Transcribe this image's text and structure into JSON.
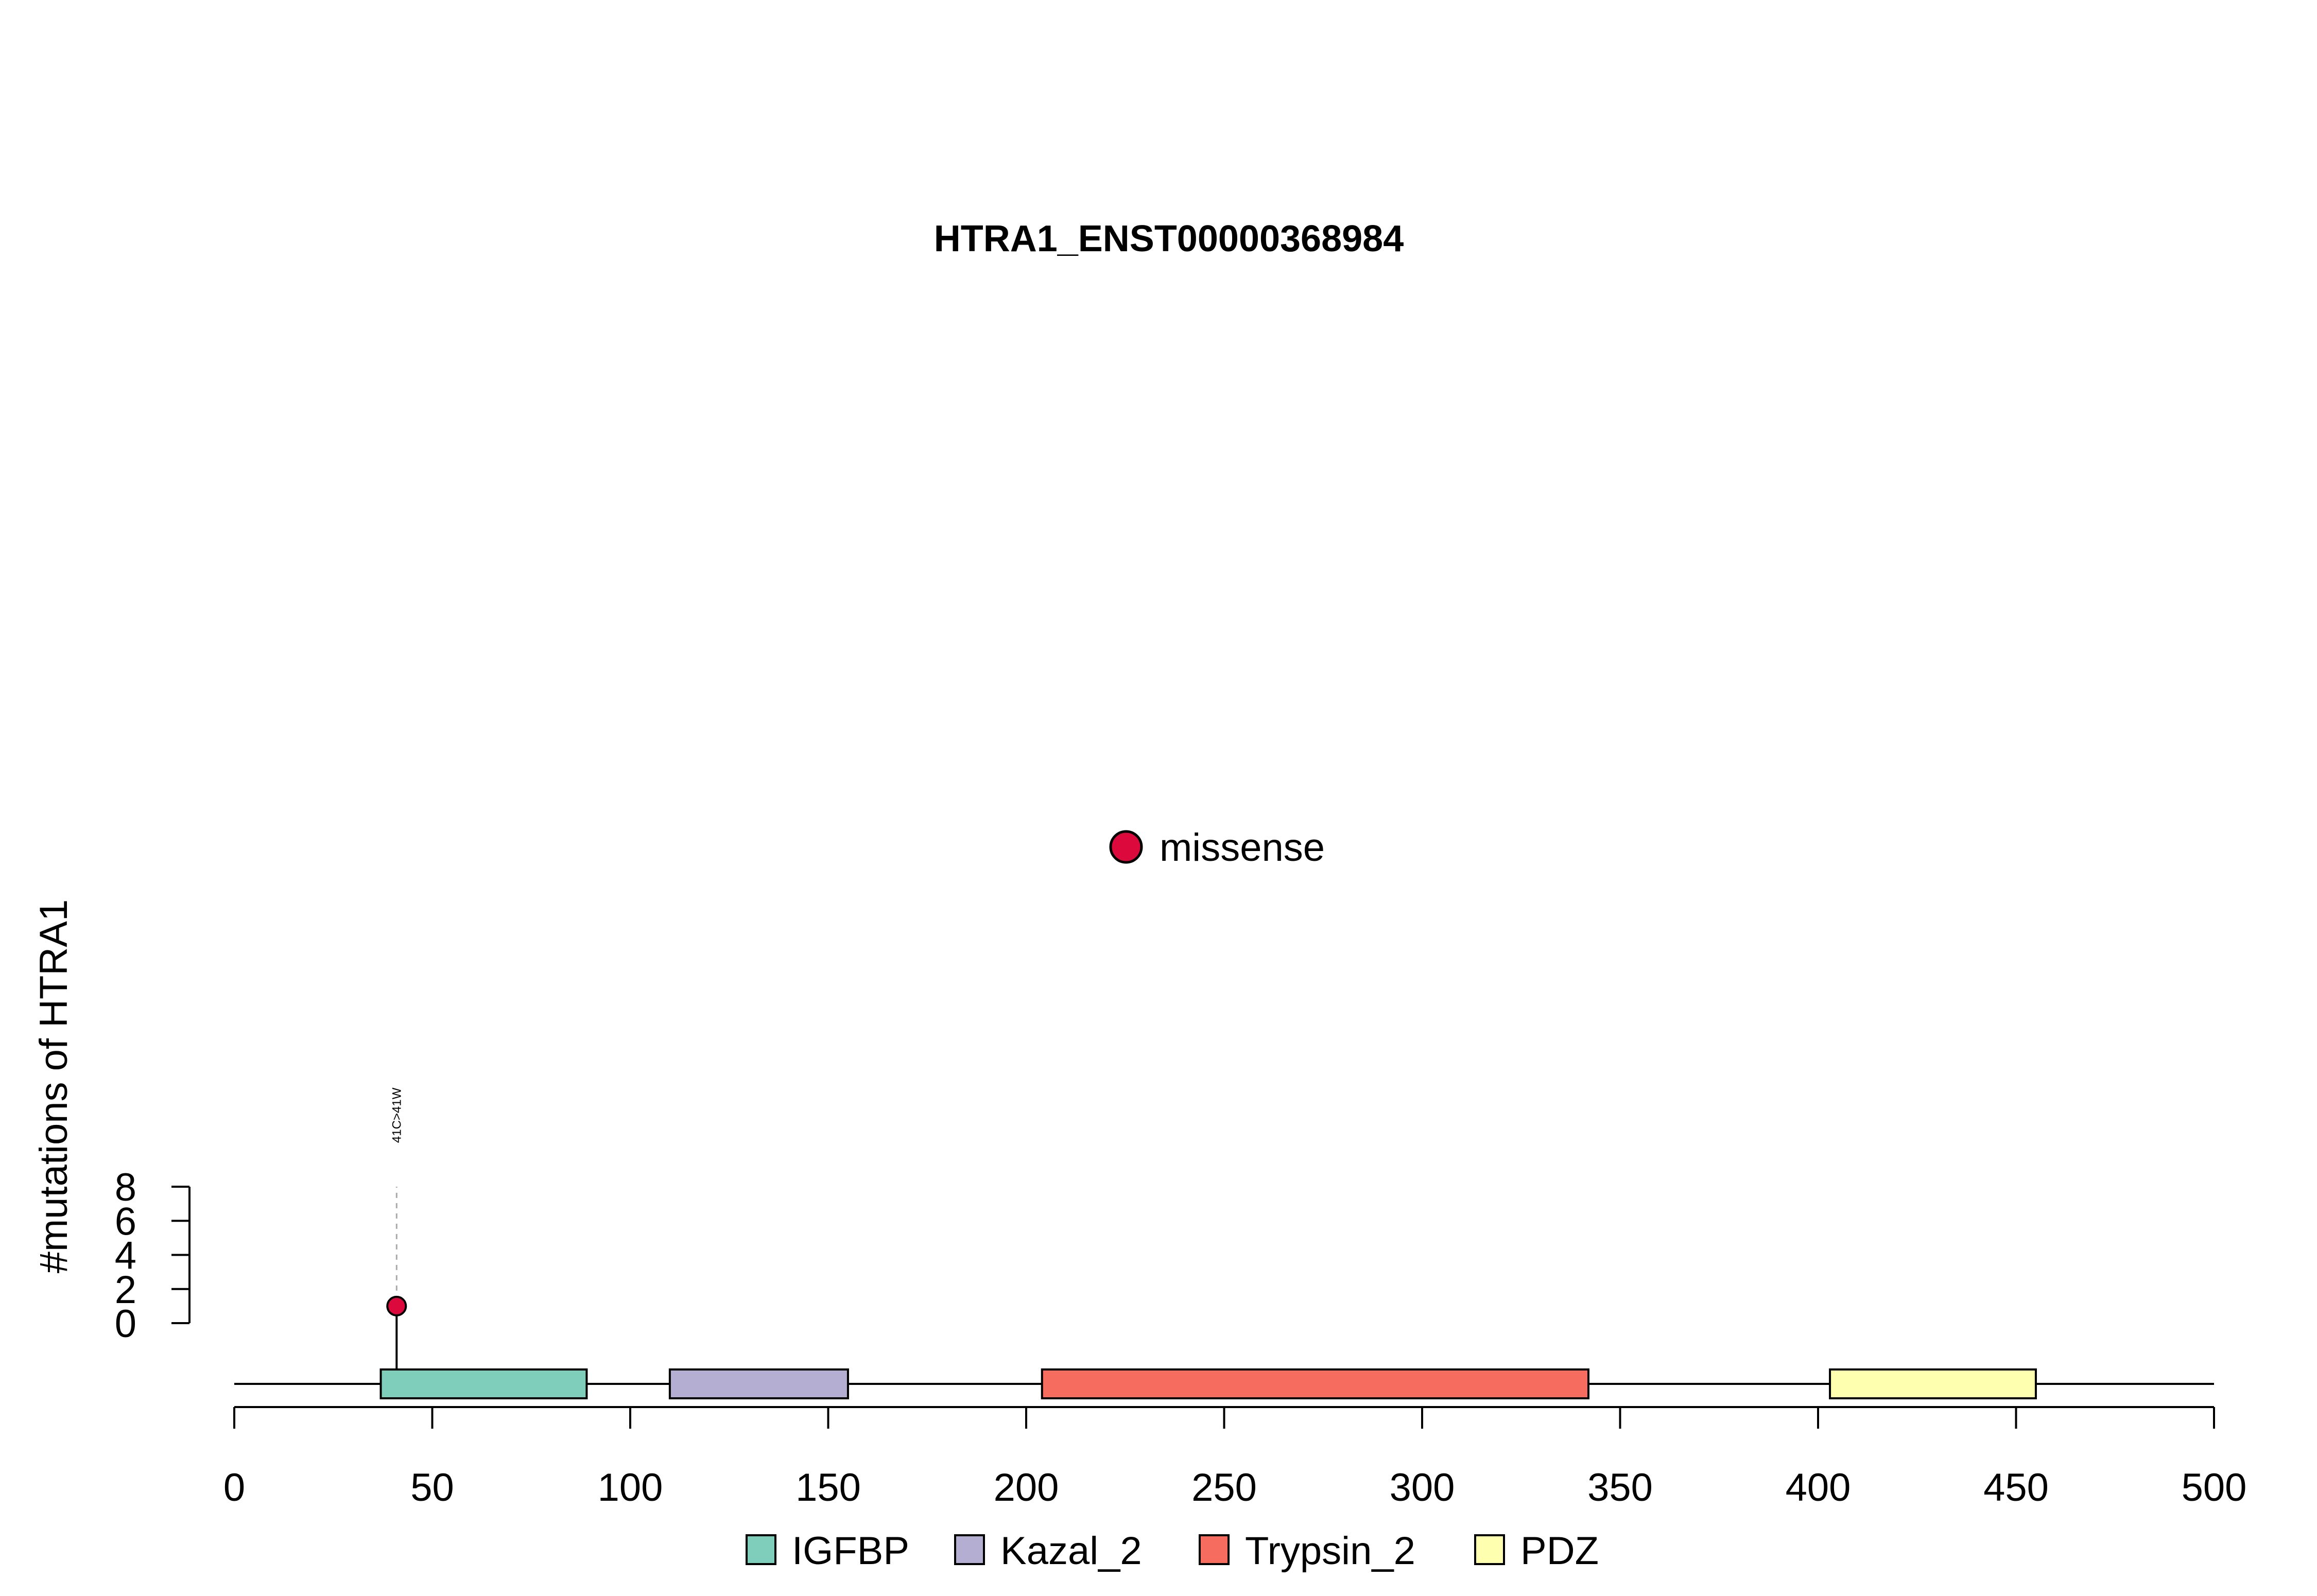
{
  "chart_data": {
    "type": "lollipop",
    "title": "HTRA1_ENST00000368984",
    "ylabel": "#mutations of HTRA1",
    "xlim": [
      0,
      500
    ],
    "x_ticks": [
      "0",
      "50",
      "100",
      "150",
      "200",
      "250",
      "300",
      "350",
      "400",
      "450",
      "500"
    ],
    "ylim": [
      0,
      8
    ],
    "y_ticks": [
      "0",
      "2",
      "4",
      "6",
      "8"
    ],
    "domains": [
      {
        "name": "IGFBP",
        "start": 37,
        "end": 89,
        "color": "#7fcdbb"
      },
      {
        "name": "Kazal_2",
        "start": 110,
        "end": 155,
        "color": "#b3aed2"
      },
      {
        "name": "Trypsin_2",
        "start": 204,
        "end": 342,
        "color": "#f66c5f"
      },
      {
        "name": "PDZ",
        "start": 403,
        "end": 455,
        "color": "#ffffb0"
      }
    ],
    "mutations": [
      {
        "position": 41,
        "count": 1,
        "label": "41C>41W",
        "type": "missense",
        "color": "#dc0a3c"
      }
    ],
    "mutation_legend": [
      {
        "label": "missense",
        "color": "#dc0a3c"
      }
    ]
  }
}
